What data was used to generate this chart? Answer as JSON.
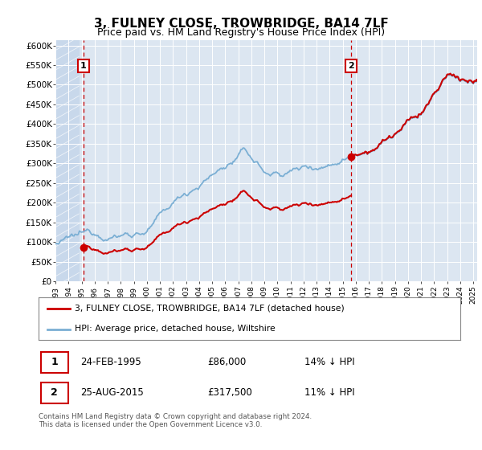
{
  "title": "3, FULNEY CLOSE, TROWBRIDGE, BA14 7LF",
  "subtitle": "Price paid vs. HM Land Registry's House Price Index (HPI)",
  "ylim": [
    0,
    612500
  ],
  "yticks": [
    0,
    50000,
    100000,
    150000,
    200000,
    250000,
    300000,
    350000,
    400000,
    450000,
    500000,
    550000,
    600000
  ],
  "ytick_labels": [
    "£0",
    "£50K",
    "£100K",
    "£150K",
    "£200K",
    "£250K",
    "£300K",
    "£350K",
    "£400K",
    "£450K",
    "£500K",
    "£550K",
    "£600K"
  ],
  "sale1_year": 1995.15,
  "sale1_price": 86000,
  "sale1_label": "1",
  "sale2_year": 2015.65,
  "sale2_price": 317500,
  "sale2_label": "2",
  "hpi_color": "#7bafd4",
  "price_color": "#cc0000",
  "annotation_box_color": "#cc0000",
  "dashed_line_color": "#cc0000",
  "plot_bg_color": "#dce6f1",
  "hatch_bg_color": "#c8d8eb",
  "grid_color": "#ffffff",
  "legend_label_price": "3, FULNEY CLOSE, TROWBRIDGE, BA14 7LF (detached house)",
  "legend_label_hpi": "HPI: Average price, detached house, Wiltshire",
  "table_row1": [
    "1",
    "24-FEB-1995",
    "£86,000",
    "14% ↓ HPI"
  ],
  "table_row2": [
    "2",
    "25-AUG-2015",
    "£317,500",
    "11% ↓ HPI"
  ],
  "footnote": "Contains HM Land Registry data © Crown copyright and database right 2024.\nThis data is licensed under the Open Government Licence v3.0.",
  "title_fontsize": 11,
  "subtitle_fontsize": 9,
  "xstart": 1993,
  "xend": 2025.3
}
